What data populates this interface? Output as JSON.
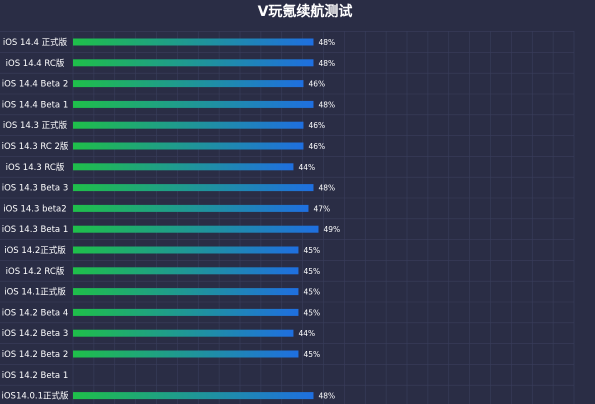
{
  "chart_data": {
    "type": "bar",
    "orientation": "horizontal",
    "title": "V玩氪续航测试",
    "xlabel": "",
    "ylabel": "",
    "xlim": [
      0,
      100
    ],
    "grid": true,
    "legend": "none",
    "value_suffix": "%",
    "categories": [
      "iOS 14.4 正式版",
      "iOS 14.4 RC版",
      "iOS 14.4 Beta 2",
      "iOS 14.4 Beta 1",
      "iOS 14.3 正式版",
      "iOS 14.3 RC 2版",
      "iOS 14.3 RC版",
      "iOS 14.3 Beta 3",
      "iOS 14.3  beta2",
      "iOS 14.3 Beta 1",
      "iOS 14.2正式版",
      "iOS 14.2 RC版",
      "iOS 14.1正式版",
      "iOS 14.2 Beta 4",
      "iOS 14.2 Beta 3",
      "iOS 14.2 Beta 2",
      "iOS 14.2 Beta 1",
      "iOS14.0.1正式版"
    ],
    "values": [
      48,
      48,
      46,
      48,
      46,
      46,
      44,
      48,
      47,
      49,
      45,
      45,
      45,
      45,
      44,
      45,
      null,
      48
    ],
    "value_labels": [
      "48%",
      "48%",
      "46%",
      "48%",
      "46%",
      "46%",
      "44%",
      "48%",
      "47%",
      "49%",
      "45%",
      "45%",
      "45%",
      "45%",
      "44%",
      "45%",
      "",
      "48%"
    ],
    "colors": {
      "background": "#2a2d45",
      "grid": "#3a3e5c",
      "bar_start": "#1fbf4a",
      "bar_end": "#1f6fe0",
      "text": "#ffffff"
    }
  }
}
